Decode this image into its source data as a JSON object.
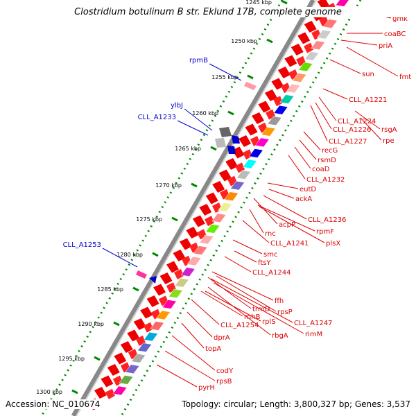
{
  "title": "Clostridium botulinum B str. Eklund 17B, complete genome",
  "footer": {
    "accession": "Accession: NC_010674",
    "topology": "Topology: circular; Length: 3,800,327 bp; Genes: 3,537"
  },
  "colors": {
    "forward_strand": "#0000cc",
    "reverse_strand": "#dd0000",
    "cds_red": "#ee0000",
    "tick_green": "#008800",
    "backbone_gray": "#888888"
  },
  "ticks": [
    {
      "label": "1245 kbp"
    },
    {
      "label": "1250 kbp"
    },
    {
      "label": "1255 kbp"
    },
    {
      "label": "1260 kbp"
    },
    {
      "label": "1265 kbp"
    },
    {
      "label": "1270 kbp"
    },
    {
      "label": "1275 kbp"
    },
    {
      "label": "1280 kbp"
    },
    {
      "label": "1285 kbp"
    },
    {
      "label": "1290 kbp"
    },
    {
      "label": "1295 kbp"
    },
    {
      "label": "1300 kbp"
    }
  ],
  "left_genes": [
    {
      "label": "rpmB"
    },
    {
      "label": "ylbJ"
    },
    {
      "label": "CLL_A1233"
    },
    {
      "label": "CLL_A1253"
    }
  ],
  "right_genes": [
    {
      "label": "gmk"
    },
    {
      "label": "coaBC"
    },
    {
      "label": "priA"
    },
    {
      "label": "sun"
    },
    {
      "label": "fmt"
    },
    {
      "label": "CLL_A1221"
    },
    {
      "label": "CLL_A1224"
    },
    {
      "label": "rsgA"
    },
    {
      "label": "CLL_A1226"
    },
    {
      "label": "rpe"
    },
    {
      "label": "CLL_A1227"
    },
    {
      "label": "recG"
    },
    {
      "label": "rsmD"
    },
    {
      "label": "coaD"
    },
    {
      "label": "CLL_A1232"
    },
    {
      "label": "eutD"
    },
    {
      "label": "ackA"
    },
    {
      "label": "CLL_A1236"
    },
    {
      "label": "acpP"
    },
    {
      "label": "rpmF"
    },
    {
      "label": "rnc"
    },
    {
      "label": "plsX"
    },
    {
      "label": "CLL_A1241"
    },
    {
      "label": "smc"
    },
    {
      "label": "ftsY"
    },
    {
      "label": "CLL_A1244"
    },
    {
      "label": "ffh"
    },
    {
      "label": "rpsP"
    },
    {
      "label": "trmD"
    },
    {
      "label": "CLL_A1247"
    },
    {
      "label": "rnhB"
    },
    {
      "label": "rplS"
    },
    {
      "label": "rimM"
    },
    {
      "label": "CLL_A1254"
    },
    {
      "label": "rbgA"
    },
    {
      "label": "dprA"
    },
    {
      "label": "topA"
    },
    {
      "label": "codY"
    },
    {
      "label": "rpsB"
    },
    {
      "label": "pyrH"
    }
  ],
  "blocks": [
    {
      "color": "#ff00aa"
    },
    {
      "color": "#ffaacc"
    },
    {
      "color": "#ff7777"
    },
    {
      "color": "#cccccc"
    },
    {
      "color": "#ff8888"
    },
    {
      "color": "#cccccc"
    },
    {
      "color": "#66dd00"
    },
    {
      "color": "#ff9966"
    },
    {
      "color": "#ffbbbb"
    },
    {
      "color": "#00ccaa"
    },
    {
      "color": "#0000ee"
    },
    {
      "color": "#999999"
    },
    {
      "color": "#ff9900"
    },
    {
      "color": "#ff00cc"
    },
    {
      "color": "#0000ee"
    },
    {
      "color": "#00ffff"
    },
    {
      "color": "#bbbbbb"
    },
    {
      "color": "#7766cc"
    },
    {
      "color": "#ff8800"
    },
    {
      "color": "#eeee99"
    },
    {
      "color": "#ff8888"
    },
    {
      "color": "#66ee00"
    },
    {
      "color": "#ffaaaa"
    },
    {
      "color": "#ff7777"
    },
    {
      "color": "#ffaaaa"
    },
    {
      "color": "#cc22cc"
    },
    {
      "color": "#cccc88"
    },
    {
      "color": "#88dd22"
    },
    {
      "color": "#ff00aa"
    },
    {
      "color": "#ff9900"
    },
    {
      "color": "#ff6666"
    },
    {
      "color": "#00aadd"
    },
    {
      "color": "#6666cc"
    },
    {
      "color": "#aaaaaa"
    },
    {
      "color": "#7766cc"
    },
    {
      "color": "#66aa44"
    },
    {
      "color": "#ff00aa"
    }
  ]
}
